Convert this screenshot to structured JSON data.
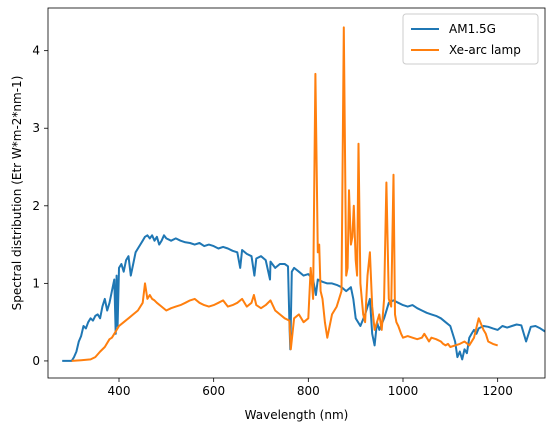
{
  "chart_data": {
    "type": "line",
    "title": "",
    "xlabel": "Wavelength (nm)",
    "ylabel": "Spectral distribution (Etr W*m-2*nm-1)",
    "xlim": [
      250,
      1300
    ],
    "ylim": [
      -0.22,
      4.55
    ],
    "xticks": [
      400,
      600,
      800,
      1000,
      1200
    ],
    "yticks": [
      0,
      1,
      2,
      3,
      4
    ],
    "grid": false,
    "legend_position": "top-right",
    "series": [
      {
        "name": "AM1.5G",
        "color": "#1f77b4",
        "x": [
          280,
          300,
          305,
          310,
          315,
          320,
          325,
          330,
          335,
          340,
          345,
          350,
          355,
          360,
          365,
          370,
          375,
          380,
          385,
          390,
          393,
          395,
          397,
          400,
          405,
          410,
          415,
          420,
          425,
          430,
          435,
          440,
          445,
          450,
          455,
          460,
          465,
          470,
          475,
          480,
          485,
          490,
          495,
          500,
          510,
          520,
          530,
          540,
          550,
          560,
          570,
          580,
          590,
          600,
          610,
          620,
          630,
          640,
          650,
          656,
          660,
          670,
          680,
          686,
          690,
          700,
          710,
          719,
          720,
          730,
          740,
          750,
          757,
          760,
          762,
          765,
          770,
          780,
          790,
          800,
          810,
          816,
          820,
          830,
          840,
          850,
          860,
          870,
          880,
          890,
          895,
          900,
          910,
          920,
          930,
          935,
          940,
          945,
          950,
          960,
          970,
          980,
          990,
          1000,
          1010,
          1020,
          1030,
          1040,
          1050,
          1060,
          1070,
          1080,
          1090,
          1100,
          1110,
          1115,
          1120,
          1125,
          1130,
          1135,
          1140,
          1145,
          1150,
          1155,
          1160,
          1170,
          1180,
          1190,
          1200,
          1210,
          1220,
          1230,
          1240,
          1250,
          1260,
          1270,
          1280,
          1290,
          1300
        ],
        "y": [
          0.0,
          0.0,
          0.05,
          0.12,
          0.25,
          0.32,
          0.45,
          0.42,
          0.5,
          0.55,
          0.52,
          0.58,
          0.6,
          0.55,
          0.7,
          0.8,
          0.65,
          0.75,
          0.9,
          1.05,
          0.35,
          1.1,
          0.45,
          1.2,
          1.25,
          1.15,
          1.3,
          1.35,
          1.1,
          1.25,
          1.4,
          1.45,
          1.5,
          1.55,
          1.6,
          1.62,
          1.58,
          1.62,
          1.55,
          1.6,
          1.5,
          1.55,
          1.62,
          1.58,
          1.55,
          1.58,
          1.55,
          1.53,
          1.52,
          1.5,
          1.52,
          1.48,
          1.5,
          1.48,
          1.45,
          1.47,
          1.45,
          1.42,
          1.4,
          1.2,
          1.43,
          1.38,
          1.35,
          1.1,
          1.32,
          1.35,
          1.3,
          1.05,
          1.28,
          1.2,
          1.25,
          1.25,
          1.22,
          0.5,
          0.15,
          1.15,
          1.2,
          1.15,
          1.1,
          1.12,
          1.05,
          0.85,
          1.05,
          1.02,
          1.0,
          1.0,
          0.98,
          0.95,
          0.9,
          0.95,
          0.8,
          0.55,
          0.45,
          0.6,
          0.8,
          0.35,
          0.2,
          0.5,
          0.4,
          0.55,
          0.75,
          0.78,
          0.75,
          0.72,
          0.7,
          0.72,
          0.68,
          0.65,
          0.62,
          0.6,
          0.58,
          0.55,
          0.5,
          0.45,
          0.25,
          0.05,
          0.12,
          0.02,
          0.15,
          0.1,
          0.3,
          0.35,
          0.4,
          0.35,
          0.42,
          0.45,
          0.44,
          0.42,
          0.4,
          0.45,
          0.43,
          0.45,
          0.47,
          0.46,
          0.25,
          0.44,
          0.45,
          0.42,
          0.38
        ]
      },
      {
        "name": "Xe-arc lamp",
        "color": "#ff7f0e",
        "x": [
          300,
          320,
          340,
          350,
          360,
          370,
          380,
          385,
          390,
          400,
          410,
          420,
          430,
          440,
          450,
          455,
          460,
          465,
          470,
          475,
          480,
          490,
          500,
          510,
          520,
          530,
          540,
          550,
          560,
          570,
          580,
          590,
          600,
          610,
          620,
          630,
          640,
          650,
          660,
          670,
          680,
          685,
          690,
          700,
          710,
          720,
          730,
          740,
          750,
          760,
          763,
          770,
          780,
          790,
          800,
          805,
          810,
          815,
          820,
          823,
          826,
          830,
          835,
          840,
          850,
          860,
          870,
          875,
          880,
          883,
          886,
          890,
          893,
          896,
          900,
          903,
          906,
          910,
          913,
          916,
          920,
          925,
          930,
          935,
          940,
          945,
          950,
          955,
          960,
          965,
          970,
          975,
          980,
          983,
          986,
          990,
          993,
          996,
          1000,
          1010,
          1020,
          1030,
          1040,
          1045,
          1050,
          1055,
          1060,
          1070,
          1080,
          1085,
          1090,
          1095,
          1100,
          1110,
          1120,
          1130,
          1140,
          1150,
          1160,
          1170,
          1175,
          1180,
          1190,
          1200
        ],
        "y": [
          0.0,
          0.01,
          0.02,
          0.05,
          0.12,
          0.18,
          0.28,
          0.3,
          0.35,
          0.45,
          0.5,
          0.55,
          0.6,
          0.65,
          0.75,
          1.0,
          0.8,
          0.85,
          0.8,
          0.78,
          0.75,
          0.7,
          0.65,
          0.68,
          0.7,
          0.72,
          0.75,
          0.78,
          0.8,
          0.75,
          0.72,
          0.7,
          0.72,
          0.75,
          0.78,
          0.7,
          0.72,
          0.75,
          0.8,
          0.7,
          0.75,
          0.85,
          0.72,
          0.68,
          0.72,
          0.78,
          0.65,
          0.6,
          0.55,
          0.52,
          0.15,
          0.55,
          0.6,
          0.5,
          0.55,
          1.2,
          0.8,
          3.7,
          1.4,
          1.5,
          0.9,
          0.8,
          0.5,
          0.3,
          0.6,
          0.7,
          0.9,
          4.3,
          1.1,
          1.2,
          2.2,
          1.5,
          1.6,
          2.0,
          1.3,
          1.1,
          2.8,
          1.0,
          0.8,
          0.6,
          0.5,
          1.1,
          1.4,
          0.7,
          0.4,
          0.5,
          0.6,
          0.4,
          0.8,
          2.3,
          0.8,
          0.7,
          2.4,
          0.6,
          0.5,
          0.45,
          0.4,
          0.35,
          0.3,
          0.32,
          0.3,
          0.28,
          0.3,
          0.35,
          0.3,
          0.25,
          0.3,
          0.28,
          0.25,
          0.22,
          0.2,
          0.22,
          0.18,
          0.2,
          0.22,
          0.25,
          0.2,
          0.3,
          0.55,
          0.4,
          0.35,
          0.25,
          0.22,
          0.2
        ]
      }
    ]
  }
}
